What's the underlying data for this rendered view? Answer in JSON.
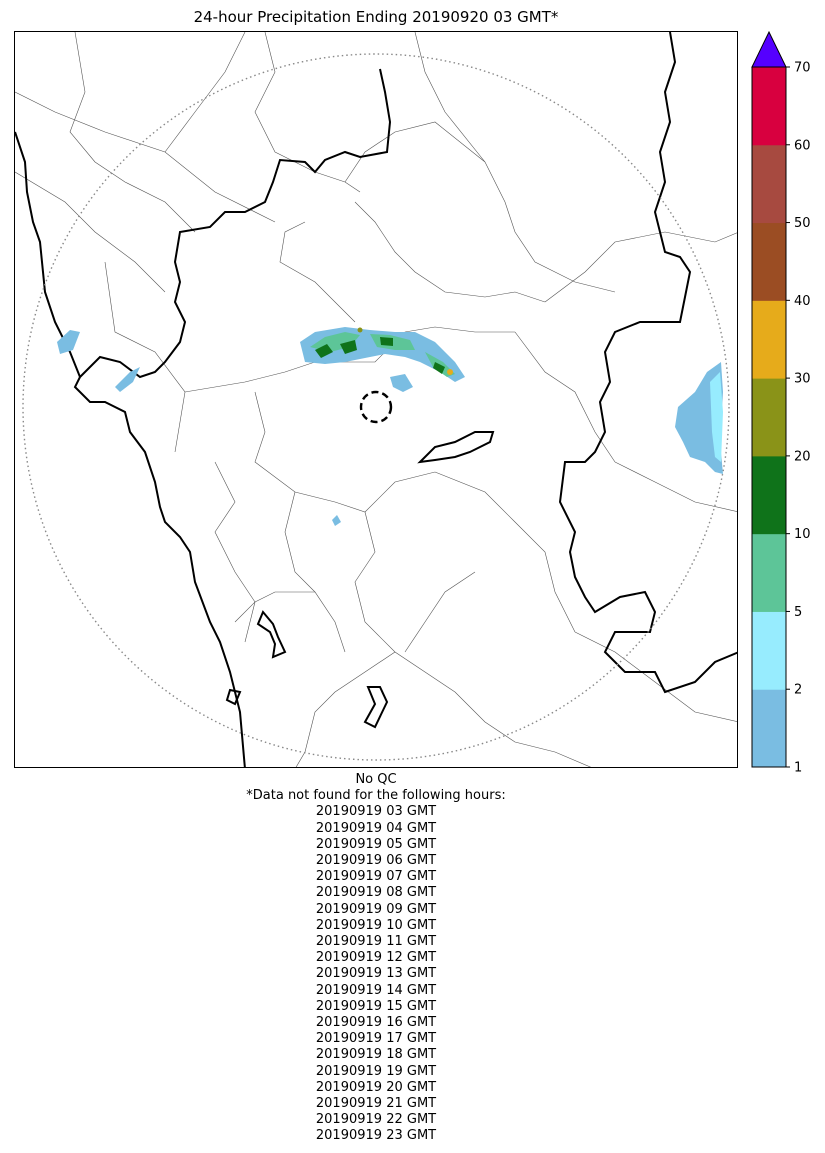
{
  "title": "24-hour Precipitation Ending 20190920 03 GMT*",
  "map": {
    "features": [
      "coastline",
      "state-borders",
      "district-borders",
      "radar-range-ring",
      "radar-site-marker",
      "precipitation-overlay"
    ]
  },
  "colorbar": {
    "ticks": [
      "1",
      "2",
      "5",
      "10",
      "20",
      "30",
      "40",
      "50",
      "60",
      "70"
    ],
    "colors": [
      "#7abde2",
      "#97ecfe",
      "#5dc598",
      "#0f731a",
      "#8a9318",
      "#e6ab1b",
      "#9b4d23",
      "#a74a40",
      "#d8003f"
    ],
    "extend_color": "#5500ff"
  },
  "notes": {
    "qc": "No QC",
    "missing_header": "*Data not found for the following hours:",
    "missing_hours": [
      "20190919 03 GMT",
      "20190919 04 GMT",
      "20190919 05 GMT",
      "20190919 06 GMT",
      "20190919 07 GMT",
      "20190919 08 GMT",
      "20190919 09 GMT",
      "20190919 10 GMT",
      "20190919 11 GMT",
      "20190919 12 GMT",
      "20190919 13 GMT",
      "20190919 14 GMT",
      "20190919 15 GMT",
      "20190919 16 GMT",
      "20190919 17 GMT",
      "20190919 18 GMT",
      "20190919 19 GMT",
      "20190919 20 GMT",
      "20190919 21 GMT",
      "20190919 22 GMT",
      "20190919 23 GMT"
    ]
  }
}
